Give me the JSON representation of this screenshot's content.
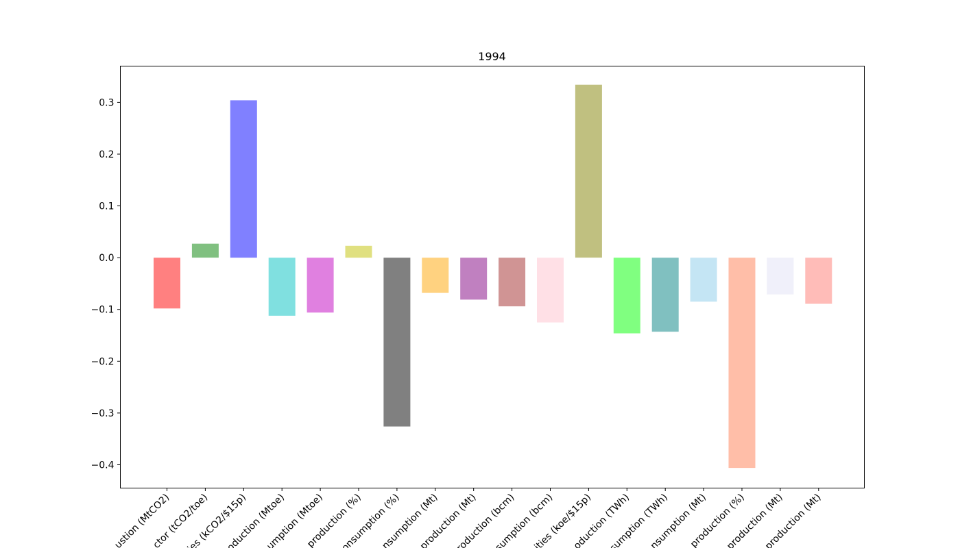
{
  "chart_data": {
    "type": "bar",
    "title": "1994",
    "xlabel": "",
    "ylabel": "",
    "ylim": [
      -0.445,
      0.37
    ],
    "yticks": [
      -0.4,
      -0.3,
      -0.2,
      -0.1,
      0.0,
      0.1,
      0.2,
      0.3
    ],
    "ytick_labels": [
      "−0.4",
      "−0.3",
      "−0.2",
      "−0.1",
      "0.0",
      "0.1",
      "0.2",
      "0.3"
    ],
    "grid": false,
    "categories": [
      "ustion (MtCO2)",
      "ctor (tCO2/toe)",
      "ies (kCO2/$15p)",
      "oduction (Mtoe)",
      "umption (Mtoe)",
      "production (%)",
      "onsumption (%)",
      "nsumption (Mt)",
      "production (Mt)",
      "roduction (bcm)",
      "sumption (bcm)",
      "ities (koe/$15p)",
      "oduction (TWh)",
      "sumption (TWh)",
      "nsumption (Mt)",
      "production (%)",
      "production (Mt)",
      "production (Mt)"
    ],
    "values": [
      -0.098,
      0.027,
      0.304,
      -0.112,
      -0.106,
      0.023,
      -0.326,
      -0.068,
      -0.081,
      -0.094,
      -0.125,
      0.334,
      -0.146,
      -0.143,
      -0.085,
      -0.406,
      -0.071,
      -0.089
    ],
    "colors": [
      "#ff8080",
      "#80c080",
      "#8080ff",
      "#80e0e0",
      "#e080e0",
      "#e0e080",
      "#808080",
      "#ffd280",
      "#c080c0",
      "#d09494",
      "#ffe0e6",
      "#c0c080",
      "#80ff80",
      "#80c0c0",
      "#c4e5f4",
      "#ffbea8",
      "#f0f0fa",
      "#ffbcb8"
    ]
  }
}
